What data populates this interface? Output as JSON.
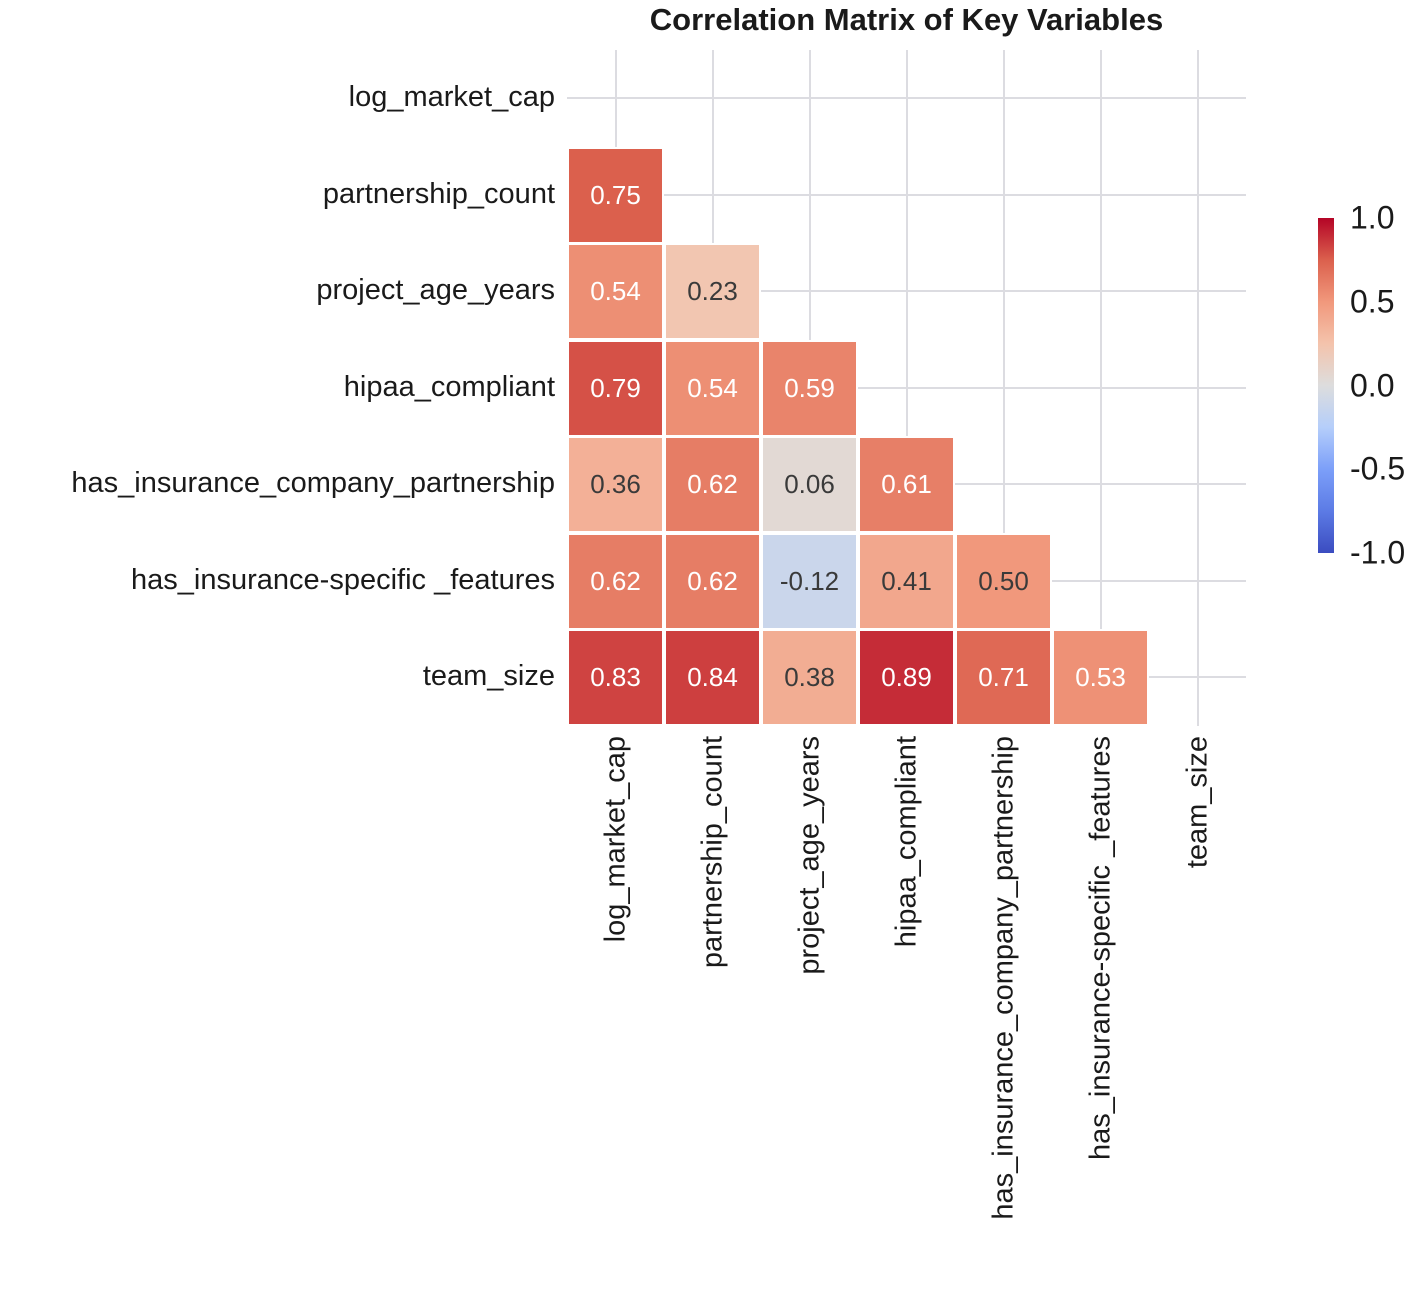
{
  "figure": {
    "title": "Correlation Matrix of Key Variables"
  },
  "chart_data": {
    "type": "heatmap",
    "title": "Correlation Matrix of Key Variables",
    "variables": [
      "log_market_cap",
      "partnership_count",
      "project_age_years",
      "hipaa_compliant",
      "has_insurance_company_partnership",
      "has_insurance-specific _features",
      "team_size"
    ],
    "lower_triangle_values": [
      [],
      [
        0.75
      ],
      [
        0.54,
        0.23
      ],
      [
        0.79,
        0.54,
        0.59
      ],
      [
        0.36,
        0.62,
        0.06,
        0.61
      ],
      [
        0.62,
        0.62,
        -0.12,
        0.41,
        0.5
      ],
      [
        0.83,
        0.84,
        0.38,
        0.89,
        0.71,
        0.53
      ]
    ],
    "mask": "upper triangle and diagonal hidden",
    "value_format_decimals": 2,
    "colormap": "coolwarm",
    "color_range": [
      -1,
      1
    ],
    "grid": true,
    "legend_position": "right colorbar",
    "colorbar_ticks": [
      "1.0",
      "0.5",
      "0.0",
      "-0.5",
      "-1.0"
    ],
    "colorbar_tick_values": [
      1.0,
      0.5,
      0.0,
      -0.5,
      -1.0
    ],
    "colors": {
      "colormap_max_red": "#b40426",
      "colormap_mid_gray": "#dddddd",
      "colormap_min_blue": "#3b4cc0",
      "gridline": "#dcdce1",
      "cell_border": "#ffffff",
      "dark_value_text": "#3a3a3a",
      "light_value_text": "#ffffff",
      "label_text": "#1a1a1a"
    }
  }
}
